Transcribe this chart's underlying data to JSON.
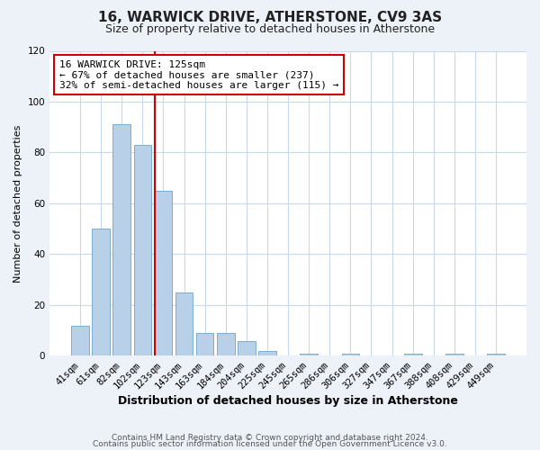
{
  "title": "16, WARWICK DRIVE, ATHERSTONE, CV9 3AS",
  "subtitle": "Size of property relative to detached houses in Atherstone",
  "xlabel": "Distribution of detached houses by size in Atherstone",
  "ylabel": "Number of detached properties",
  "bar_labels": [
    "41sqm",
    "61sqm",
    "82sqm",
    "102sqm",
    "123sqm",
    "143sqm",
    "163sqm",
    "184sqm",
    "204sqm",
    "225sqm",
    "245sqm",
    "265sqm",
    "286sqm",
    "306sqm",
    "327sqm",
    "347sqm",
    "367sqm",
    "388sqm",
    "408sqm",
    "429sqm",
    "449sqm"
  ],
  "bar_values": [
    12,
    50,
    91,
    83,
    65,
    25,
    9,
    9,
    6,
    2,
    0,
    1,
    0,
    1,
    0,
    0,
    1,
    0,
    1,
    0,
    1
  ],
  "bar_color": "#b8d0e8",
  "bar_edge_color": "#7aadd4",
  "ylim": [
    0,
    120
  ],
  "yticks": [
    0,
    20,
    40,
    60,
    80,
    100,
    120
  ],
  "vline_index": 4,
  "vline_color": "#cc0000",
  "annotation_title": "16 WARWICK DRIVE: 125sqm",
  "annotation_line1": "← 67% of detached houses are smaller (237)",
  "annotation_line2": "32% of semi-detached houses are larger (115) →",
  "annotation_box_color": "#ffffff",
  "annotation_box_edge": "#cc0000",
  "footer1": "Contains HM Land Registry data © Crown copyright and database right 2024.",
  "footer2": "Contains public sector information licensed under the Open Government Licence v3.0.",
  "bg_color": "#edf2f9",
  "plot_bg_color": "#ffffff",
  "grid_color": "#c8d8ee"
}
